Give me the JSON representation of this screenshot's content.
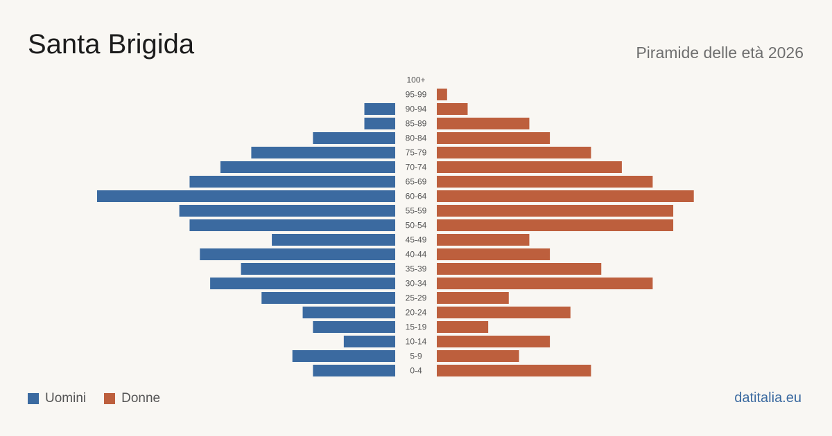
{
  "title": "Santa Brigida",
  "subtitle": "Piramide delle età 2026",
  "brand": "datitalia.eu",
  "legend": {
    "men_label": "Uomini",
    "women_label": "Donne"
  },
  "colors": {
    "men": "#3b6aa0",
    "women": "#bd5f3d",
    "background": "#f9f7f3"
  },
  "chart_data": {
    "type": "bar",
    "orientation": "horizontal-population-pyramid",
    "categories": [
      "100+",
      "95-99",
      "90-94",
      "85-89",
      "80-84",
      "75-79",
      "70-74",
      "65-69",
      "60-64",
      "55-59",
      "50-54",
      "45-49",
      "40-44",
      "35-39",
      "30-34",
      "25-29",
      "20-24",
      "15-19",
      "10-14",
      "5-9",
      "0-4"
    ],
    "series": [
      {
        "name": "Uomini",
        "values": [
          0,
          0,
          3,
          3,
          8,
          14,
          17,
          20,
          29,
          21,
          20,
          12,
          19,
          15,
          18,
          13,
          9,
          8,
          5,
          10,
          8
        ]
      },
      {
        "name": "Donne",
        "values": [
          0,
          1,
          3,
          9,
          11,
          15,
          18,
          21,
          25,
          23,
          23,
          9,
          11,
          16,
          21,
          7,
          13,
          5,
          11,
          8,
          15
        ]
      }
    ],
    "max_value": 29
  }
}
